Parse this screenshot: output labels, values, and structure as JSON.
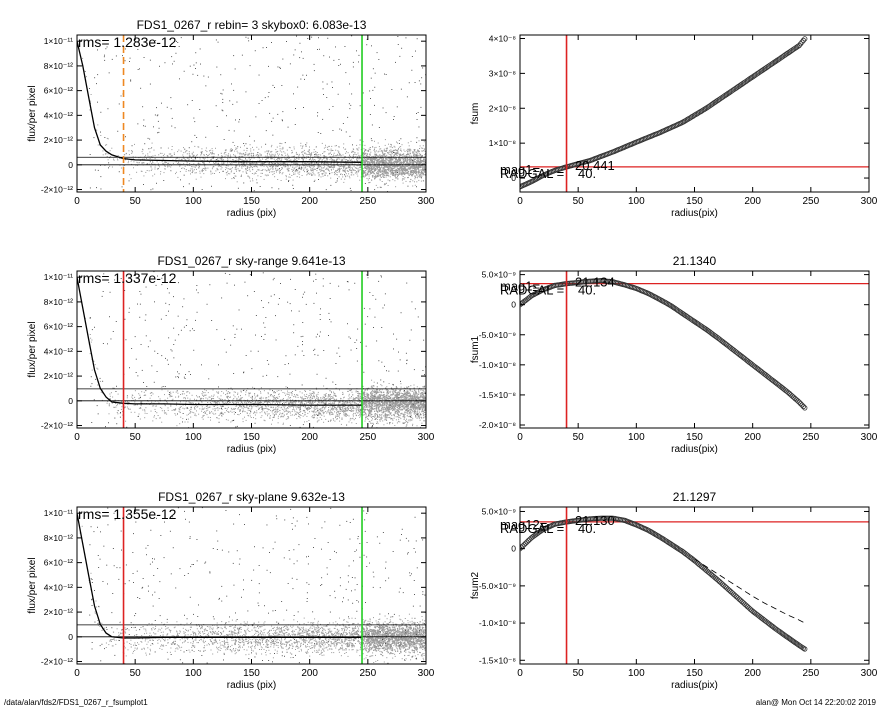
{
  "footer": {
    "path": "/data/alan/fds2/FDS1_0267_r_fsumplot1",
    "stamp": "alan@  Mon Oct 14 22:20:02 2019"
  },
  "colors": {
    "data_points": "#9a9a9a",
    "green": "#22cc22",
    "red": "#dd2222",
    "orange": "#ee8822"
  },
  "chart_data": [
    {
      "type": "scatter",
      "title": "FDS1_0267_r rebin= 3    skybox0:  6.083e-13",
      "xlabel": "radius (pix)",
      "ylabel": "flux/per pixel",
      "xlim": [
        0,
        300
      ],
      "ylim": [
        -2.2e-12,
        1.05e-11
      ],
      "xticks": [
        0,
        50,
        100,
        150,
        200,
        250,
        300
      ],
      "yticks": [
        {
          "value": -2e-12,
          "label": "-2×10⁻¹²"
        },
        {
          "value": 0,
          "label": "0"
        },
        {
          "value": 2e-12,
          "label": "2×10⁻¹²"
        },
        {
          "value": 4e-12,
          "label": "4×10⁻¹²"
        },
        {
          "value": 6e-12,
          "label": "6×10⁻¹²"
        },
        {
          "value": 8e-12,
          "label": "8×10⁻¹²"
        },
        {
          "value": 1e-11,
          "label": "1×10⁻¹¹"
        }
      ],
      "annotation": "rms= 1.283e-12",
      "profile": {
        "x": [
          0,
          5,
          10,
          15,
          20,
          25,
          30,
          40,
          50,
          75,
          100,
          150,
          200,
          245
        ],
        "y": [
          1e-11,
          8e-12,
          5.5e-12,
          3e-12,
          1.6e-12,
          1.1e-12,
          8e-13,
          5e-13,
          4e-13,
          3.5e-13,
          3e-13,
          2.5e-13,
          2.5e-13,
          2e-13
        ]
      },
      "hlines": [
        6.083e-13,
        0
      ],
      "vlines": [
        {
          "x": 40,
          "color": "#ee8822",
          "style": "dashed"
        },
        {
          "x": 245,
          "color": "#22cc22",
          "style": "solid"
        }
      ],
      "scatter_spread": 1.6e-12
    },
    {
      "type": "scatter",
      "title": "",
      "xlabel": "radius(pix)",
      "ylabel": "fsum",
      "xlim": [
        0,
        300
      ],
      "ylim": [
        -4e-09,
        4.1e-08
      ],
      "xticks": [
        0,
        50,
        100,
        150,
        200,
        250,
        300
      ],
      "yticks": [
        {
          "value": 0,
          "label": "0"
        },
        {
          "value": 1e-08,
          "label": "1×10⁻⁸"
        },
        {
          "value": 2e-08,
          "label": "2×10⁻⁸"
        },
        {
          "value": 3e-08,
          "label": "3×10⁻⁸"
        },
        {
          "value": 4e-08,
          "label": "4×10⁻⁸"
        }
      ],
      "series": [
        {
          "x": [
            0,
            10,
            20,
            30,
            40,
            60,
            80,
            100,
            120,
            140,
            160,
            180,
            200,
            220,
            240,
            245
          ],
          "y": [
            -2.5e-09,
            -1e-09,
            8e-10,
            2.2e-09,
            3.2e-09,
            5e-09,
            7.5e-09,
            1.03e-08,
            1.3e-08,
            1.6e-08,
            2e-08,
            2.45e-08,
            2.9e-08,
            3.35e-08,
            3.8e-08,
            4e-08
          ]
        }
      ],
      "hlines": [
        3.2e-09
      ],
      "vlines": [
        {
          "x": 40,
          "color": "#dd2222",
          "style": "solid"
        }
      ],
      "overlay_labels": [
        "mag1=",
        "20.441",
        "RADGAL =",
        "40."
      ]
    },
    {
      "type": "scatter",
      "title": "FDS1_0267_r sky-range  9.641e-13",
      "xlabel": "radius (pix)",
      "ylabel": "flux/per pixel",
      "xlim": [
        0,
        300
      ],
      "ylim": [
        -2.2e-12,
        1.05e-11
      ],
      "xticks": [
        0,
        50,
        100,
        150,
        200,
        250,
        300
      ],
      "yticks": [
        {
          "value": -2e-12,
          "label": "-2×10⁻¹²"
        },
        {
          "value": 0,
          "label": "0"
        },
        {
          "value": 2e-12,
          "label": "2×10⁻¹²"
        },
        {
          "value": 4e-12,
          "label": "4×10⁻¹²"
        },
        {
          "value": 6e-12,
          "label": "6×10⁻¹²"
        },
        {
          "value": 8e-12,
          "label": "8×10⁻¹²"
        },
        {
          "value": 1e-11,
          "label": "1×10⁻¹¹"
        }
      ],
      "annotation": "rms= 1.337e-12",
      "profile": {
        "x": [
          0,
          5,
          10,
          15,
          20,
          25,
          30,
          40,
          50,
          75,
          100,
          150,
          200,
          245
        ],
        "y": [
          1e-11,
          7.5e-12,
          5e-12,
          2.5e-12,
          1e-12,
          3e-13,
          -1e-13,
          -2e-13,
          -2.5e-13,
          -2.5e-13,
          -3e-13,
          -3e-13,
          -3.5e-13,
          -3.5e-13
        ]
      },
      "hlines": [
        9.641e-13,
        0
      ],
      "vlines": [
        {
          "x": 40,
          "color": "#dd2222",
          "style": "solid"
        },
        {
          "x": 245,
          "color": "#22cc22",
          "style": "solid"
        }
      ],
      "scatter_spread": 1.6e-12
    },
    {
      "type": "scatter",
      "title": "21.1340",
      "xlabel": "radius(pix)",
      "ylabel": "fsum1",
      "xlim": [
        0,
        300
      ],
      "ylim": [
        -2.05e-08,
        5.6e-09
      ],
      "xticks": [
        0,
        50,
        100,
        150,
        200,
        250,
        300
      ],
      "yticks": [
        {
          "value": -2e-08,
          "label": "-2.0×10⁻⁸"
        },
        {
          "value": -1.5e-08,
          "label": "-1.5×10⁻⁸"
        },
        {
          "value": -1e-08,
          "label": "-1.0×10⁻⁸"
        },
        {
          "value": -5e-09,
          "label": "-5.0×10⁻⁹"
        },
        {
          "value": 0,
          "label": "0"
        },
        {
          "value": 5e-09,
          "label": "5.0×10⁻⁹"
        }
      ],
      "series": [
        {
          "x": [
            0,
            10,
            20,
            30,
            40,
            50,
            60,
            70,
            80,
            90,
            100,
            110,
            120,
            130,
            140,
            150,
            160,
            170,
            180,
            190,
            200,
            210,
            220,
            230,
            240,
            245
          ],
          "y": [
            0.0,
            1.5e-09,
            2.5e-09,
            3.2e-09,
            3.5e-09,
            3.7e-09,
            3.9e-09,
            4e-09,
            3.8e-09,
            3.3e-09,
            2.7e-09,
            1.9e-09,
            9e-10,
            -2e-10,
            -1.5e-09,
            -2.8e-09,
            -4.1e-09,
            -5.5e-09,
            -7e-09,
            -8.5e-09,
            -1e-08,
            -1.15e-08,
            -1.3e-08,
            -1.45e-08,
            -1.62e-08,
            -1.72e-08
          ]
        }
      ],
      "hlines": [
        3.5e-09
      ],
      "vlines": [
        {
          "x": 40,
          "color": "#dd2222",
          "style": "solid"
        }
      ],
      "overlay_labels": [
        "mag1=",
        "21.134",
        "RADGAL =",
        "40."
      ]
    },
    {
      "type": "scatter",
      "title": "FDS1_0267_r sky-plane  9.632e-13",
      "xlabel": "radius (pix)",
      "ylabel": "flux/per pixel",
      "xlim": [
        0,
        300
      ],
      "ylim": [
        -2.2e-12,
        1.05e-11
      ],
      "xticks": [
        0,
        50,
        100,
        150,
        200,
        250,
        300
      ],
      "yticks": [
        {
          "value": -2e-12,
          "label": "-2×10⁻¹²"
        },
        {
          "value": 0,
          "label": "0"
        },
        {
          "value": 2e-12,
          "label": "2×10⁻¹²"
        },
        {
          "value": 4e-12,
          "label": "4×10⁻¹²"
        },
        {
          "value": 6e-12,
          "label": "6×10⁻¹²"
        },
        {
          "value": 8e-12,
          "label": "8×10⁻¹²"
        },
        {
          "value": 1e-11,
          "label": "1×10⁻¹¹"
        }
      ],
      "annotation": "rms= 1.355e-12",
      "profile": {
        "x": [
          0,
          5,
          10,
          15,
          20,
          25,
          30,
          40,
          50,
          75,
          100,
          150,
          200,
          245
        ],
        "y": [
          1e-11,
          7.5e-12,
          5e-12,
          2.5e-12,
          1e-12,
          3e-13,
          0.0,
          -1e-13,
          -1e-13,
          -5e-14,
          -5e-14,
          -5e-14,
          -5e-14,
          -5e-14
        ]
      },
      "hlines": [
        9.632e-13,
        0
      ],
      "vlines": [
        {
          "x": 40,
          "color": "#dd2222",
          "style": "solid"
        },
        {
          "x": 245,
          "color": "#22cc22",
          "style": "solid"
        }
      ],
      "scatter_spread": 1.6e-12
    },
    {
      "type": "scatter",
      "title": "21.1297",
      "xlabel": "radius(pix)",
      "ylabel": "fsum2",
      "xlim": [
        0,
        300
      ],
      "ylim": [
        -1.55e-08,
        5.6e-09
      ],
      "xticks": [
        0,
        50,
        100,
        150,
        200,
        250,
        300
      ],
      "yticks": [
        {
          "value": -1.5e-08,
          "label": "-1.5×10⁻⁸"
        },
        {
          "value": -1e-08,
          "label": "-1.0×10⁻⁸"
        },
        {
          "value": -5e-09,
          "label": "-5.0×10⁻⁹"
        },
        {
          "value": 0,
          "label": "0"
        },
        {
          "value": 5e-09,
          "label": "5.0×10⁻⁹"
        }
      ],
      "series": [
        {
          "x": [
            0,
            10,
            20,
            30,
            40,
            50,
            60,
            70,
            80,
            90,
            100,
            110,
            120,
            130,
            140,
            150,
            160,
            170,
            180,
            190,
            200,
            210,
            220,
            230,
            240,
            245
          ],
          "y": [
            0.0,
            1.5e-09,
            2.6e-09,
            3.3e-09,
            3.6e-09,
            3.8e-09,
            4e-09,
            4.1e-09,
            4.1e-09,
            3.8e-09,
            3.2e-09,
            2.5e-09,
            1.6e-09,
            6e-10,
            -4e-10,
            -1.6e-09,
            -2.9e-09,
            -4.2e-09,
            -5.6e-09,
            -7e-09,
            -8.4e-09,
            -9.6e-09,
            -1.08e-08,
            -1.19e-08,
            -1.3e-08,
            -1.35e-08
          ]
        },
        {
          "style": "dashed",
          "x": [
            150,
            160,
            170,
            180,
            190,
            200,
            210,
            220,
            230,
            240,
            245
          ],
          "y": [
            -1.4e-09,
            -2.4e-09,
            -3.4e-09,
            -4.4e-09,
            -5.4e-09,
            -6.4e-09,
            -7.3e-09,
            -8.1e-09,
            -8.9e-09,
            -9.6e-09,
            -1e-08
          ]
        }
      ],
      "hlines": [
        3.6e-09
      ],
      "vlines": [
        {
          "x": 40,
          "color": "#dd2222",
          "style": "solid"
        }
      ],
      "overlay_labels": [
        "mag12=",
        "21.130",
        "RADGAL =",
        "40."
      ]
    }
  ]
}
